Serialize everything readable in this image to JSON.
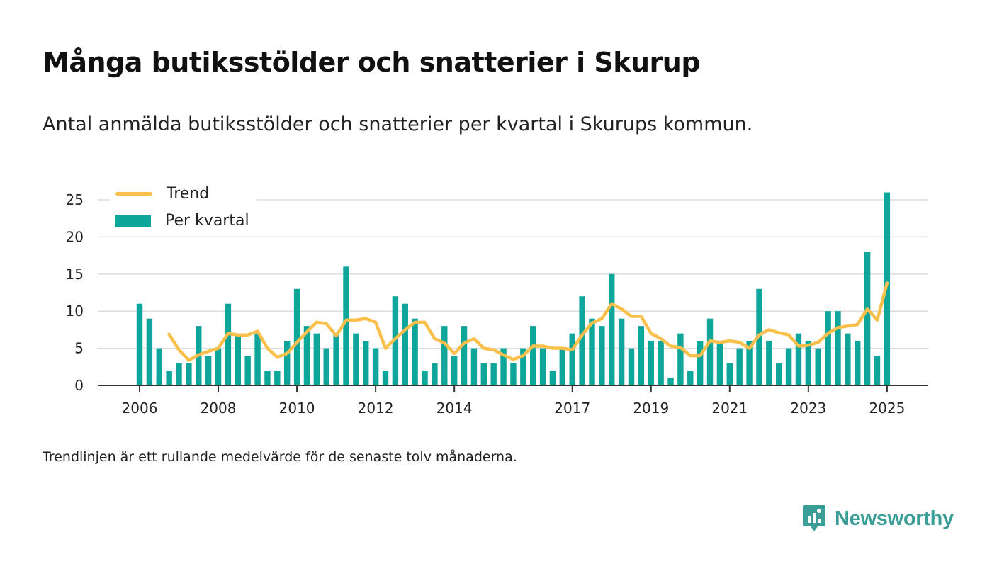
{
  "title": "Många butiksstölder och snatterier i Skurup",
  "subtitle": "Antal anmälda butiksstölder och snatterier per kvartal i Skurups kommun.",
  "footnote": "Trendlinjen är ett rullande medelvärde för de senaste tolv månaderna.",
  "brand": {
    "name": "Newsworthy",
    "icon": "newsworthy-logo-icon"
  },
  "colors": {
    "bar": "#0ea59a",
    "trend": "#fbc04b",
    "brand": "#3a9e96",
    "grid": "#dddddd",
    "axis": "#333333"
  },
  "legend": {
    "trend_label": "Trend",
    "bar_label": "Per kvartal",
    "placement": "top-left"
  },
  "chart_data": {
    "type": "bar",
    "title": "Många butiksstölder och snatterier i Skurup",
    "xlabel": "",
    "ylabel": "",
    "ylim": [
      0,
      26
    ],
    "yticks": [
      0,
      5,
      10,
      15,
      20,
      25
    ],
    "grid": true,
    "start": {
      "year": 2006,
      "quarter": 1
    },
    "xtick_labels": [
      {
        "label": "2006",
        "index": 0
      },
      {
        "label": "2008",
        "index": 8
      },
      {
        "label": "2010",
        "index": 16
      },
      {
        "label": "2012",
        "index": 24
      },
      {
        "label": "2014",
        "index": 32
      },
      {
        "label": "2017",
        "index": 44
      },
      {
        "label": "2019",
        "index": 52
      },
      {
        "label": "2021",
        "index": 60
      },
      {
        "label": "2023",
        "index": 68
      },
      {
        "label": "2025",
        "index": 76
      }
    ],
    "series": [
      {
        "name": "Per kvartal",
        "type": "bar",
        "values": [
          11,
          9,
          5,
          2,
          3,
          3,
          8,
          4,
          5,
          11,
          7,
          4,
          7,
          2,
          2,
          6,
          13,
          8,
          7,
          5,
          7,
          16,
          7,
          6,
          5,
          2,
          12,
          11,
          9,
          2,
          3,
          8,
          4,
          8,
          5,
          3,
          3,
          5,
          3,
          5,
          8,
          5,
          2,
          5,
          7,
          12,
          9,
          8,
          15,
          9,
          5,
          8,
          6,
          6,
          1,
          7,
          2,
          6,
          9,
          6,
          3,
          5,
          6,
          13,
          6,
          3,
          5,
          7,
          6,
          5,
          10,
          10,
          7,
          6,
          18,
          4,
          26
        ]
      },
      {
        "name": "Trend",
        "type": "line",
        "start_index": 3,
        "values": [
          6.9,
          4.8,
          3.4,
          4.1,
          4.6,
          5.0,
          7.0,
          6.8,
          6.8,
          7.3,
          5.0,
          3.8,
          4.3,
          5.8,
          7.2,
          8.5,
          8.3,
          6.7,
          8.8,
          8.8,
          9.0,
          8.5,
          5.0,
          6.3,
          7.5,
          8.5,
          8.5,
          6.3,
          5.7,
          4.3,
          5.7,
          6.3,
          5.0,
          4.8,
          4.1,
          3.5,
          4.0,
          5.3,
          5.3,
          5.0,
          5.0,
          4.8,
          6.8,
          8.4,
          9.0,
          11.0,
          10.3,
          9.3,
          9.3,
          7.0,
          6.3,
          5.3,
          5.1,
          4.0,
          4.0,
          6.0,
          5.8,
          6.0,
          5.8,
          5.0,
          6.8,
          7.5,
          7.1,
          6.8,
          5.3,
          5.4,
          5.8,
          7.0,
          7.8,
          8.0,
          8.2,
          10.3,
          8.8,
          13.8
        ]
      }
    ]
  }
}
